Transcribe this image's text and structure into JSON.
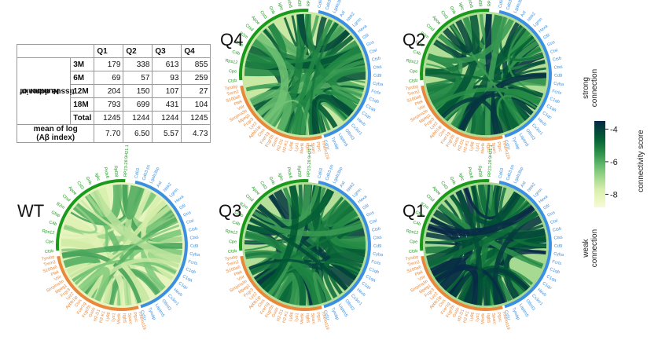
{
  "table": {
    "columns": [
      "",
      "Q1",
      "Q2",
      "Q3",
      "Q4"
    ],
    "group_label_line1": "Number of",
    "group_label_line2": "tissue domain",
    "rows": [
      {
        "label": "3M",
        "values": [
          "179",
          "338",
          "613",
          "855"
        ]
      },
      {
        "label": "6M",
        "values": [
          "69",
          "57",
          "93",
          "259"
        ]
      },
      {
        "label": "12M",
        "values": [
          "204",
          "150",
          "107",
          "27"
        ]
      },
      {
        "label": "18M",
        "values": [
          "793",
          "699",
          "431",
          "104"
        ]
      },
      {
        "label": "Total",
        "values": [
          "1245",
          "1244",
          "1244",
          "1245"
        ]
      }
    ],
    "mean_label_line1": "mean of log",
    "mean_label_line2": "(Aβ index)",
    "mean_values": [
      "7.70",
      "6.50",
      "5.57",
      "4.73"
    ]
  },
  "colors": {
    "green_genes": "#1a9a1a",
    "blue_genes": "#3a8fe0",
    "orange_genes": "#e8883a"
  },
  "chart_data": {
    "type": "chord",
    "panels": [
      {
        "label": "Q4",
        "intensity": 0.72
      },
      {
        "label": "Q2",
        "intensity": 0.88
      },
      {
        "label": "WT",
        "intensity": 0.32
      },
      {
        "label": "Q3",
        "intensity": 0.86
      },
      {
        "label": "Q1",
        "intensity": 0.95
      }
    ],
    "genes_green": [
      "RP23-28 9H21.1",
      "Rpl38",
      "Prdx6",
      "Igkc",
      "Gnb",
      "Cst3",
      "Apoe",
      "Ctsd",
      "B2m",
      "Gfap",
      "C4b",
      "Rps12",
      "Cpe",
      "Ctsb"
    ],
    "genes_blue": [
      "Cd63",
      "Cd63-ps",
      "Lgals3bp",
      "Axl",
      "Ntrk2",
      "Lgmn",
      "Hexa",
      "Gfil",
      "Gns",
      "Ctsl",
      "Ctsb",
      "Ctss",
      "Cd9",
      "Cyba",
      "Fcrls",
      "C1qb",
      "C1qa",
      "C1qc",
      "Hexb",
      "Cx3cr1",
      "Olfml3",
      "Laptm5",
      "Tyrobp",
      "Csf1r"
    ],
    "genes_orange": [
      "Tyrobp",
      "Trem2",
      "S100a6",
      "Plek",
      "Vsir",
      "Serpina3n",
      "Mpeg1",
      "Fcgr3",
      "Lyz2",
      "Apbb1ip",
      "Ctss",
      "Fcer1g",
      "Fcgr2b",
      "Gusb",
      "H2-D1",
      "H2-K1",
      "Ly86",
      "Lyz1",
      "Mertk",
      "Itgb5",
      "Sparc",
      "Ptprc",
      "Tmem119"
    ],
    "colorbar": {
      "title": "connectivity score",
      "ticks": [
        "-4",
        "-6",
        "-8"
      ],
      "range": [
        -8.8,
        -3.5
      ],
      "top_label_line1": "strong",
      "top_label_line2": "connection",
      "bottom_label_line1": "weak",
      "bottom_label_line2": "connection"
    }
  }
}
